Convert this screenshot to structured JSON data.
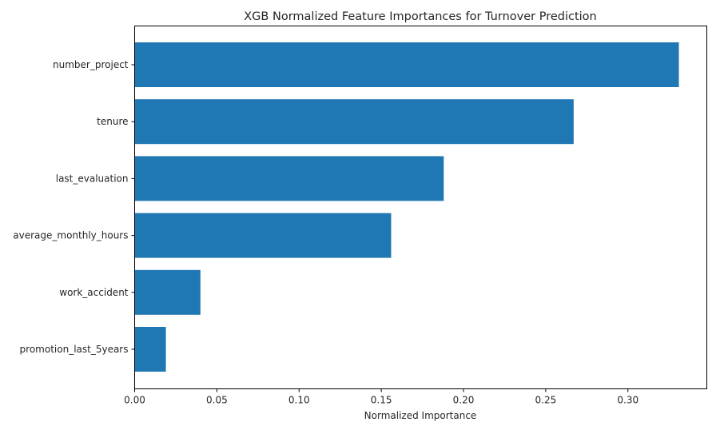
{
  "chart_data": {
    "type": "bar",
    "orientation": "horizontal",
    "title": "XGB Normalized Feature Importances for Turnover Prediction",
    "xlabel": "Normalized Importance",
    "ylabel": "",
    "categories": [
      "number_project",
      "tenure",
      "last_evaluation",
      "average_monthly_hours",
      "work_accident",
      "promotion_last_5years"
    ],
    "values": [
      0.331,
      0.267,
      0.188,
      0.156,
      0.04,
      0.019
    ],
    "xlim": [
      0,
      0.348
    ],
    "xticks": [
      0.0,
      0.05,
      0.1,
      0.15,
      0.2,
      0.25,
      0.3
    ],
    "xtick_labels": [
      "0.00",
      "0.05",
      "0.10",
      "0.15",
      "0.20",
      "0.25",
      "0.30"
    ],
    "grid": false,
    "bar_color": "#1f77b4"
  }
}
